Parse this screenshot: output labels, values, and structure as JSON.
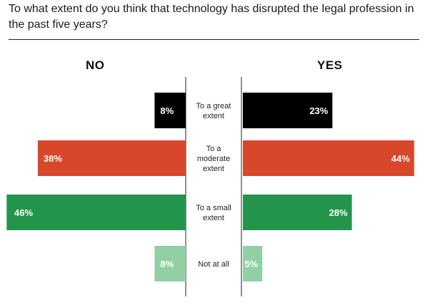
{
  "title": "To what extent do you think that technology has disrupted the legal profession in the past five years?",
  "chart_data": {
    "type": "bar",
    "orientation": "diverging-horizontal",
    "left_label": "NO",
    "right_label": "YES",
    "categories": [
      "To a great extent",
      "To a moderate extent",
      "To a small extent",
      "Not at all"
    ],
    "category_lines": [
      [
        "To a great",
        "extent"
      ],
      [
        "To a",
        "moderate",
        "extent"
      ],
      [
        "To a small",
        "extent"
      ],
      [
        "Not at all"
      ]
    ],
    "series": [
      {
        "name": "NO",
        "values": [
          8,
          38,
          46,
          8
        ],
        "labels": [
          "8%",
          "38%",
          "46%",
          "8%"
        ]
      },
      {
        "name": "YES",
        "values": [
          23,
          44,
          28,
          5
        ],
        "labels": [
          "23%",
          "44%",
          "28%",
          "5%"
        ]
      }
    ],
    "bar_colors": [
      "#000000",
      "#d9472b",
      "#23954b",
      "#93cfa5"
    ]
  }
}
